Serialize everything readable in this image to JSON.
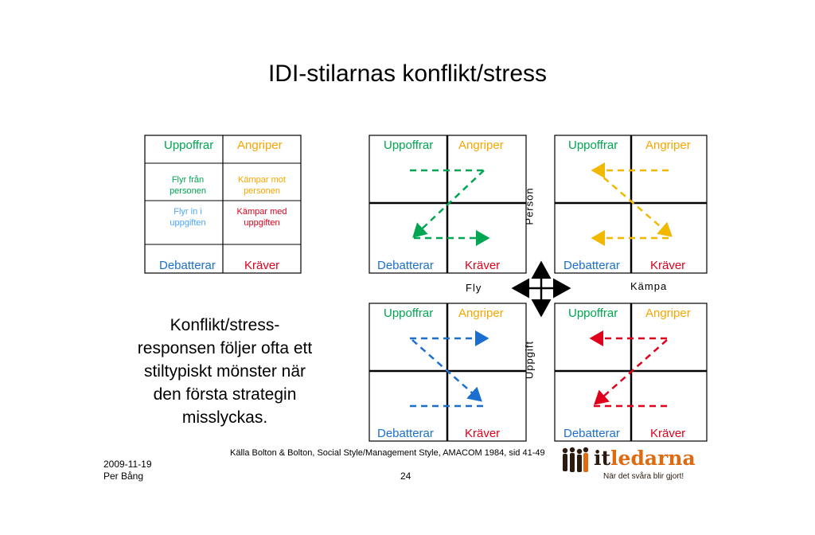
{
  "title": "IDI-stilarnas konflikt/stress",
  "colors": {
    "green": "#00a651",
    "orange": "#f7a600",
    "blue": "#1a6fd1",
    "red": "#e0001b",
    "arrow_green": "#00a651",
    "arrow_yellow": "#f2b800",
    "arrow_blue": "#1a6fd1",
    "arrow_red": "#e0001b"
  },
  "legend": {
    "top_left": "Uppoffrar",
    "top_right": "Angriper",
    "bottom_left": "Debatterar",
    "bottom_right": "Kräver",
    "cell_tl": [
      "Flyr från",
      "personen"
    ],
    "cell_tr": [
      "Kämpar mot",
      "personen"
    ],
    "cell_bl": [
      "Flyr in i",
      "uppgiften"
    ],
    "cell_br": [
      "Kämpar med",
      "uppgiften"
    ]
  },
  "panels": {
    "uppoffrar": "Uppoffrar",
    "angriper": "Angriper",
    "debatterar": "Debatterar",
    "kraver": "Kräver"
  },
  "axes": {
    "person": "Person",
    "uppgift": "Uppgift",
    "fly": "Fly",
    "kampa": "Kämpa"
  },
  "note": [
    "Konflikt/stress-",
    "responsen följer ofta ett",
    "stiltypiskt mönster när",
    "den första strategin",
    "misslyckas."
  ],
  "source": "Källa Bolton & Bolton, Social Style/Management Style, AMACOM 1984, sid 41-49",
  "footer": {
    "date": "2009-11-19",
    "author": "Per Bång",
    "page": "24"
  },
  "logo": {
    "name": "itledarna",
    "name_prefix": "it",
    "name_suffix": "ledarna",
    "tagline": "När det svåra blir gjort!"
  }
}
